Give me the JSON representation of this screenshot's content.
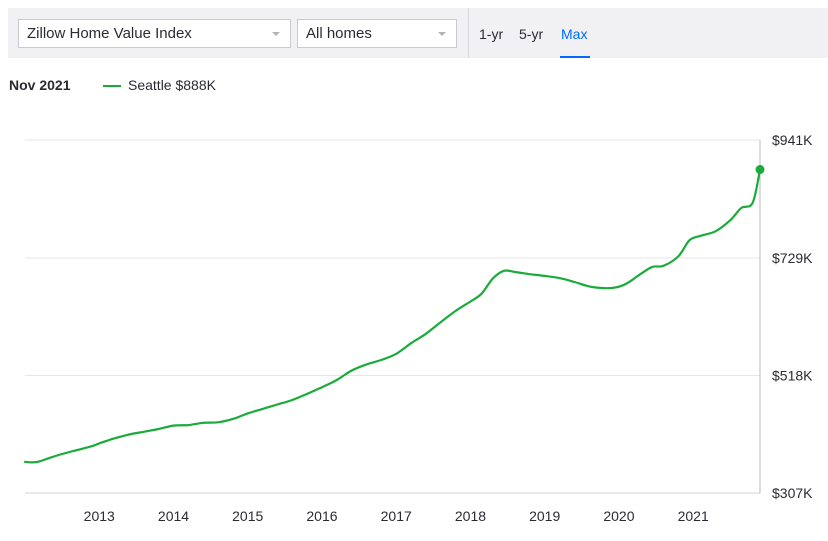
{
  "toolbar": {
    "index_select": "Zillow Home Value Index",
    "homes_select": "All homes",
    "ranges": [
      "1-yr",
      "5-yr",
      "Max"
    ],
    "active_range": "Max"
  },
  "legend": {
    "date": "Nov 2021",
    "series_label": "Seattle $888K"
  },
  "colors": {
    "series": "#1bab3a",
    "accent": "#006aff"
  },
  "chart_data": {
    "type": "line",
    "y_tick_labels": [
      "$941K",
      "$729K",
      "$518K",
      "$307K"
    ],
    "y_tick_values": [
      941,
      729,
      518,
      307
    ],
    "x_tick_labels": [
      "2013",
      "2014",
      "2015",
      "2016",
      "2017",
      "2018",
      "2019",
      "2020",
      "2021"
    ],
    "x_tick_values": [
      2013,
      2014,
      2015,
      2016,
      2017,
      2018,
      2019,
      2020,
      2021
    ],
    "ylim": [
      307,
      941
    ],
    "xlim": [
      2012.0,
      2021.9
    ],
    "grid": true,
    "series": [
      {
        "name": "Seattle",
        "color": "#1bab3a",
        "x": [
          2012.0,
          2012.1,
          2012.2,
          2012.35,
          2012.5,
          2012.7,
          2012.9,
          2013.0,
          2013.2,
          2013.4,
          2013.6,
          2013.8,
          2014.0,
          2014.2,
          2014.4,
          2014.6,
          2014.8,
          2015.0,
          2015.2,
          2015.4,
          2015.6,
          2015.8,
          2016.0,
          2016.2,
          2016.4,
          2016.6,
          2016.8,
          2017.0,
          2017.2,
          2017.4,
          2017.6,
          2017.8,
          2018.0,
          2018.15,
          2018.3,
          2018.45,
          2018.6,
          2018.8,
          2019.0,
          2019.2,
          2019.4,
          2019.6,
          2019.8,
          2019.95,
          2020.1,
          2020.3,
          2020.45,
          2020.6,
          2020.8,
          2020.95,
          2021.1,
          2021.3,
          2021.5,
          2021.65,
          2021.8,
          2021.9
        ],
        "y": [
          363,
          362,
          364,
          371,
          377,
          384,
          391,
          396,
          405,
          412,
          417,
          422,
          428,
          429,
          433,
          434,
          440,
          450,
          458,
          466,
          474,
          485,
          497,
          510,
          527,
          538,
          546,
          557,
          576,
          593,
          614,
          634,
          651,
          665,
          692,
          706,
          704,
          700,
          697,
          693,
          686,
          678,
          675,
          676,
          683,
          701,
          713,
          715,
          732,
          761,
          769,
          777,
          797,
          819,
          828,
          888
        ]
      }
    ]
  }
}
